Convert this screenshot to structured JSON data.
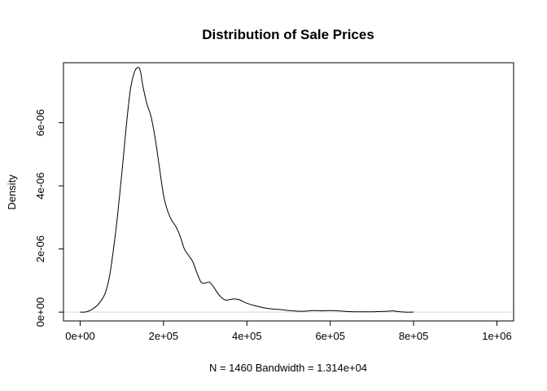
{
  "chart_data": {
    "type": "line",
    "title": "Distribution of Sale Prices",
    "xlabel": "N = 1460   Bandwidth = 1.314e+04",
    "ylabel": "Density",
    "xlim": [
      -40000,
      1040000
    ],
    "ylim": [
      -2.8e-07,
      7.9e-06
    ],
    "xticks": [
      0,
      200000,
      400000,
      600000,
      800000,
      1000000
    ],
    "xtick_labels": [
      "0e+00",
      "2e+05",
      "4e+05",
      "6e+05",
      "8e+05",
      "1e+06"
    ],
    "yticks": [
      0,
      2e-06,
      4e-06,
      6e-06
    ],
    "ytick_labels": [
      "0e+00",
      "2e-06",
      "4e-06",
      "6e-06"
    ],
    "zero_line": true,
    "grid": false,
    "series": [
      {
        "x": [
          0,
          10000,
          20000,
          30000,
          40000,
          50000,
          60000,
          70000,
          80000,
          90000,
          100000,
          110000,
          120000,
          130000,
          140000,
          145000,
          150000,
          160000,
          170000,
          180000,
          190000,
          200000,
          210000,
          220000,
          230000,
          240000,
          250000,
          260000,
          270000,
          280000,
          290000,
          300000,
          310000,
          320000,
          330000,
          340000,
          350000,
          360000,
          370000,
          380000,
          390000,
          400000,
          420000,
          440000,
          460000,
          480000,
          500000,
          520000,
          540000,
          560000,
          580000,
          600000,
          620000,
          640000,
          660000,
          680000,
          700000,
          720000,
          740000,
          750000,
          760000,
          780000,
          800000
        ],
        "y": [
          0.0,
          0.0,
          3e-08,
          1e-07,
          2e-07,
          3.6e-07,
          6e-07,
          1.1e-06,
          2e-06,
          3.1e-06,
          4.4e-06,
          5.8e-06,
          7e-06,
          7.6e-06,
          7.75e-06,
          7.6e-06,
          7.2e-06,
          6.6e-06,
          6.2e-06,
          5.5e-06,
          4.6e-06,
          3.7e-06,
          3.2e-06,
          2.9e-06,
          2.7e-06,
          2.4e-06,
          2e-06,
          1.8e-06,
          1.6e-06,
          1.25e-06,
          9.5e-07,
          9.2e-07,
          9.5e-07,
          8e-07,
          6e-07,
          4.5e-07,
          3.8e-07,
          4e-07,
          4.2e-07,
          4e-07,
          3.4e-07,
          2.8e-07,
          2e-07,
          1.4e-07,
          1e-07,
          8e-08,
          5e-08,
          3e-08,
          3e-08,
          5e-08,
          4e-08,
          5e-08,
          4e-08,
          2e-08,
          1e-08,
          1e-08,
          1e-08,
          2e-08,
          3e-08,
          4e-08,
          2e-08,
          0.0,
          0.0
        ]
      }
    ]
  }
}
